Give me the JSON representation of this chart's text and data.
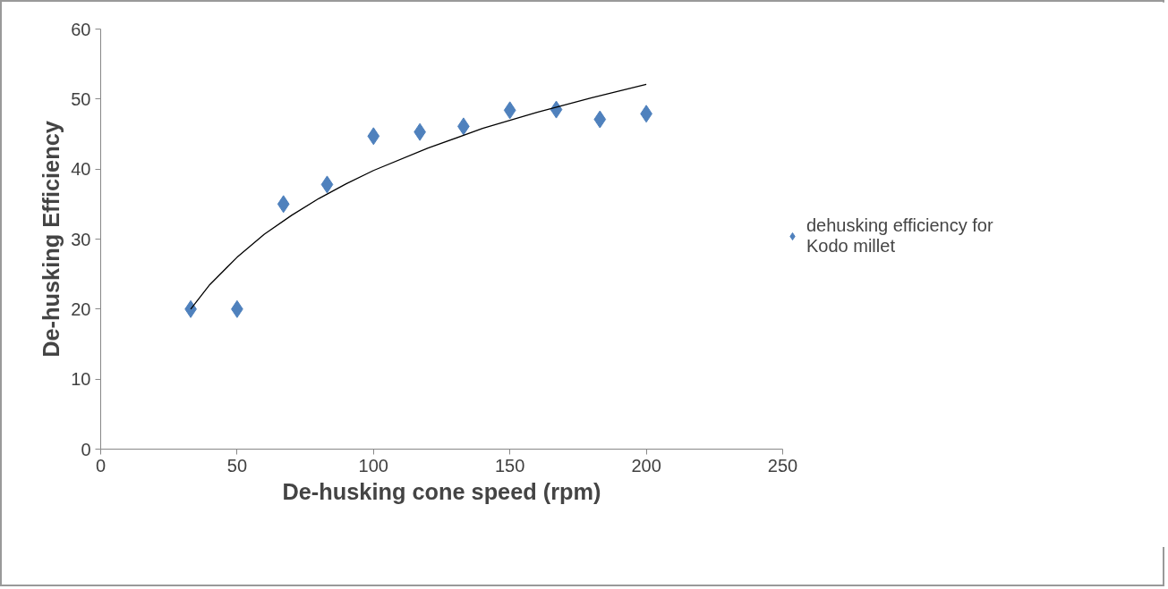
{
  "chart_data": {
    "type": "scatter",
    "xlabel": "De-husking cone speed (rpm)",
    "ylabel": "De-husking Efficiency",
    "xlim": [
      0,
      250
    ],
    "ylim": [
      0,
      60
    ],
    "xticks": [
      0,
      50,
      100,
      150,
      200,
      250
    ],
    "yticks": [
      0,
      10,
      20,
      30,
      40,
      50,
      60
    ],
    "grid": false,
    "legend": "right",
    "marker": "diamond",
    "series": [
      {
        "name": "dehusking efficiency for Kodo millet",
        "color": "#4f81bd",
        "x": [
          33,
          50,
          67,
          83,
          100,
          117,
          133,
          150,
          167,
          183,
          200
        ],
        "values": [
          20,
          20,
          35,
          37.8,
          44.7,
          45.3,
          46.1,
          48.4,
          48.5,
          47.1,
          47.9
        ]
      },
      {
        "type": "line",
        "color": "#000000",
        "marker": "none",
        "x": [
          33,
          40,
          50,
          60,
          70,
          80,
          90,
          100,
          120,
          140,
          160,
          180,
          200
        ],
        "values": [
          20.0,
          23.5,
          27.4,
          30.7,
          33.4,
          35.8,
          37.9,
          39.8,
          43.0,
          45.8,
          48.1,
          50.2,
          52.1
        ]
      }
    ]
  }
}
